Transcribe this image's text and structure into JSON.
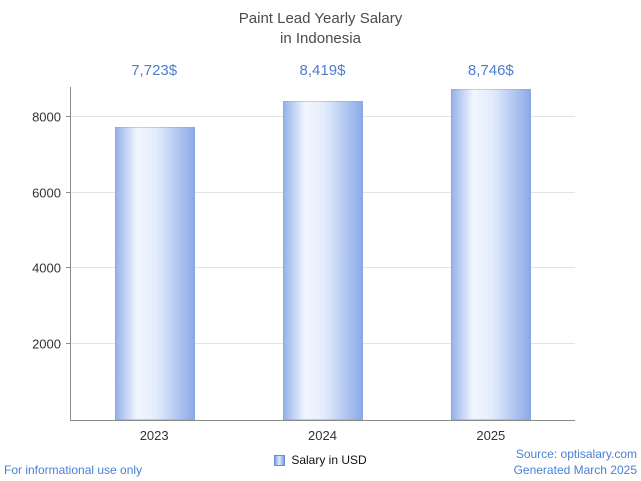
{
  "title": {
    "line1": "Paint Lead Yearly Salary",
    "line2": "in Indonesia"
  },
  "legend": {
    "label": "Salary in USD"
  },
  "footer": {
    "left": "For informational use only",
    "source": "Source: optisalary.com",
    "generated": "Generated March 2025"
  },
  "colors": {
    "accent_blue": "#4a7fd4",
    "bar_gradient_edge": "#8aa9e7",
    "bar_gradient_center": "#f2f6fe",
    "axis": "#8c8c8c",
    "gridline": "#e4e4e4",
    "title_text": "#4c4c4c"
  },
  "chart_data": {
    "type": "bar",
    "title": "Paint Lead Yearly Salary in Indonesia",
    "categories": [
      "2023",
      "2024",
      "2025"
    ],
    "series": [
      {
        "name": "Salary in USD",
        "values": [
          7723,
          8419,
          8746
        ]
      }
    ],
    "value_labels": [
      "7,723$",
      "8,419$",
      "8,746$"
    ],
    "xlabel": "",
    "ylabel": "",
    "ylim": [
      0,
      8800
    ],
    "yticks": [
      2000,
      4000,
      6000,
      8000
    ],
    "grid": true,
    "legend_position": "bottom"
  }
}
